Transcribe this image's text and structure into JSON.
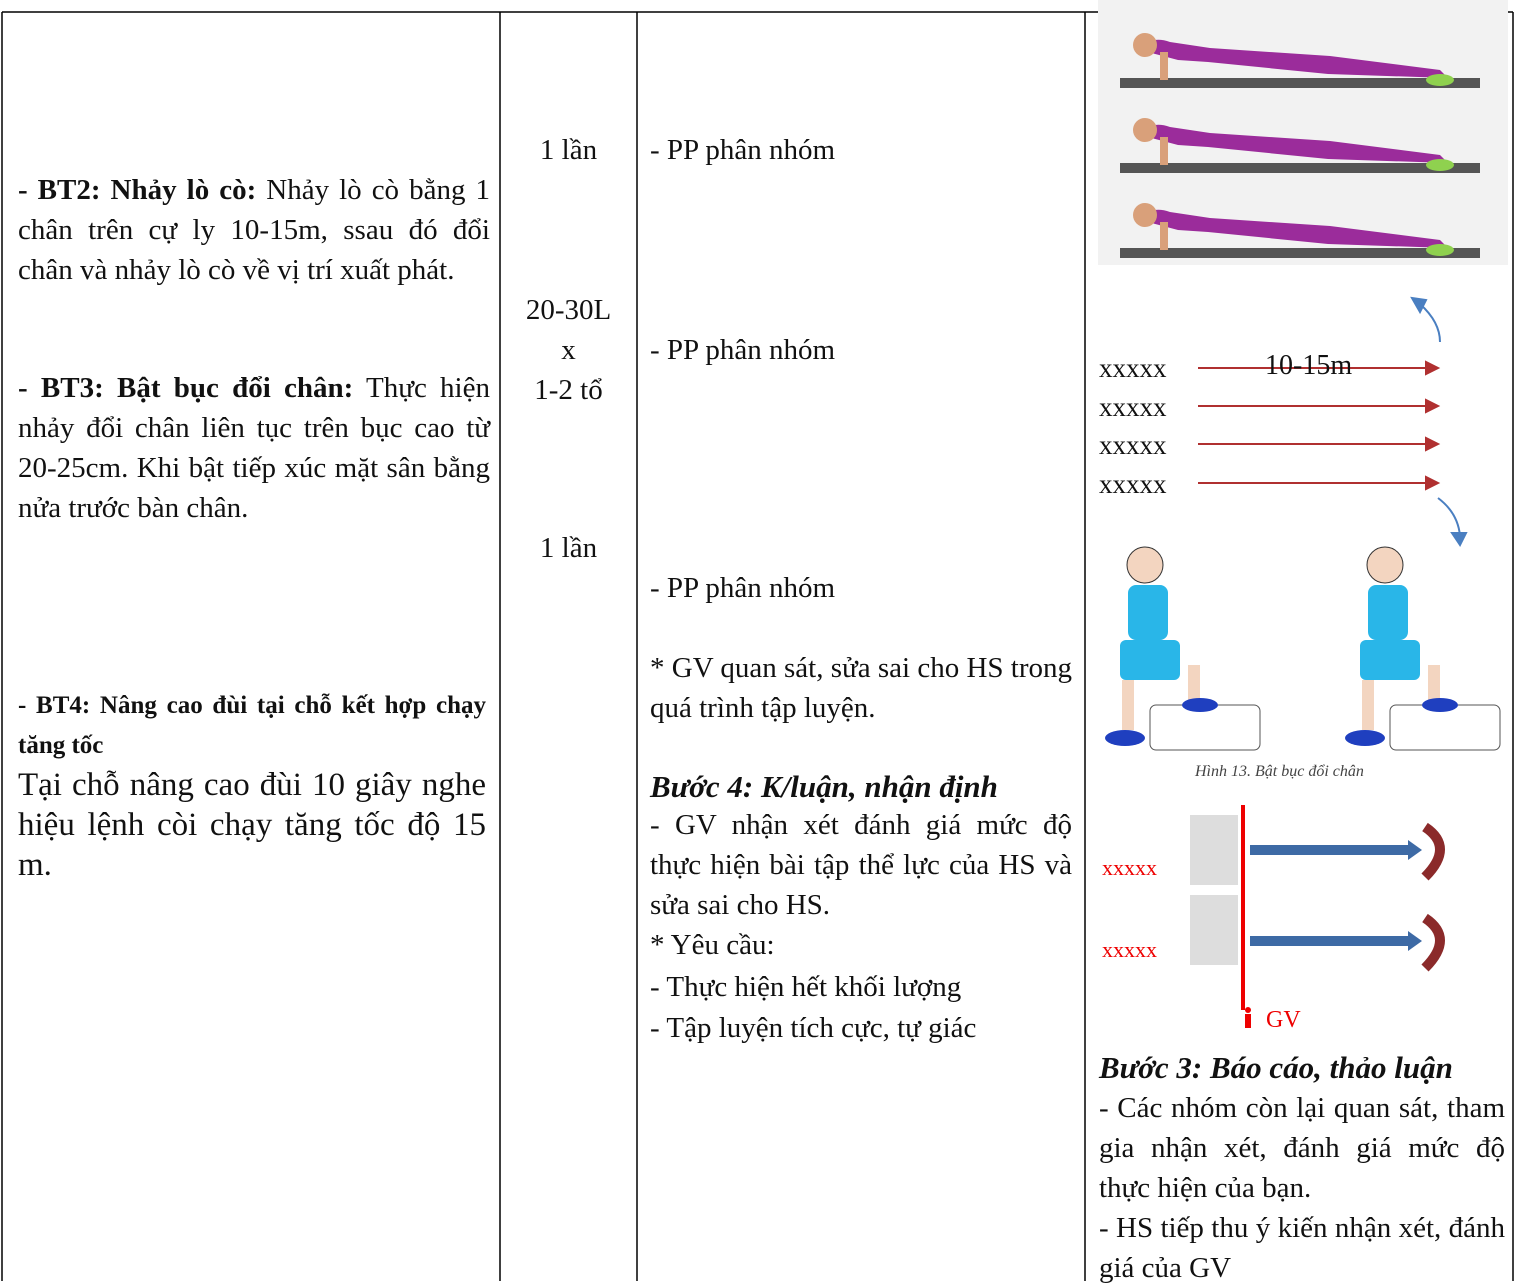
{
  "exercises": {
    "bt2": {
      "lead": "- BT2: Nhảy lò cò:",
      "text": " Nhảy lò cò bằng 1 chân trên cự ly 10-15m, ssau đó đổi chân và nhảy lò cò về vị trí xuất phát."
    },
    "bt3": {
      "lead": "- BT3: Bật bục đổi chân:",
      "text": " Thực hiện nhảy đổi chân liên tục trên bục cao từ 20-25cm. Khi bật tiếp xúc mặt sân bằng nửa trước bàn chân."
    },
    "bt4": {
      "lead": "- BT4: Nâng cao đùi tại chỗ kết hợp chạy tăng tốc",
      "text": "Tại chỗ nâng cao đùi 10 giây nghe hiệu lệnh còi chạy tăng tốc độ 15 m."
    }
  },
  "dosage": [
    "1 lần",
    "20-30L",
    "x",
    "1-2 tổ",
    "1 lần"
  ],
  "methods": {
    "items": [
      "- PP phân nhóm",
      "- PP phân nhóm",
      "- PP phân nhóm"
    ],
    "note": "* GV quan sát, sửa sai cho HS trong quá trình tập luyện.",
    "step4": {
      "title": "Bước 4: K/luận, nhận định",
      "text": "- GV nhận xét đánh giá mức độ thực hiện bài tập thể lực của HS và sửa sai cho HS.",
      "lines": [
        "* Yêu cầu:",
        "- Thực hiện hết khối lượng",
        "- Tập luyện tích cực, tự giác"
      ]
    }
  },
  "organization": {
    "rows": [
      "xxxxx",
      "xxxxx",
      "xxxxx",
      "xxxxx"
    ],
    "distance": "10-15m",
    "caption": "Hình 13. Bật bục đổi chân",
    "groups": [
      "xxxxx",
      "xxxxx"
    ],
    "teacher": "GV",
    "step3": {
      "title": "Bước 3: Báo cáo, thảo luận",
      "lines": [
        "- Các nhóm còn lại quan sát, tham gia nhận xét, đánh giá mức độ thực hiện của bạn.",
        "- HS tiếp thu ý kiến nhận xét, đánh giá của GV"
      ]
    }
  }
}
